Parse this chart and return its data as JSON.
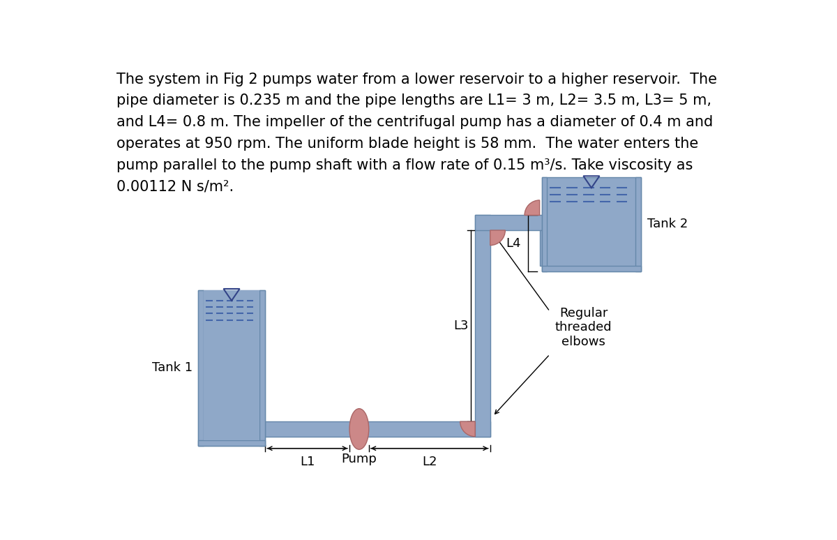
{
  "bg_color": "#ffffff",
  "pipe_color": "#8fa8c8",
  "pipe_edge_color": "#6688aa",
  "tank_fill_color": "#8fa8c8",
  "water_dash_color": "#4466aa",
  "elbow_color": "#cc8888",
  "elbow_edge_color": "#aa6666",
  "pump_color": "#cc8888",
  "pump_edge_color": "#aa6666",
  "text_color": "#000000",
  "triangle_color": "#334488",
  "font_size_text": 15.0,
  "font_size_label": 13.0,
  "text_lines": [
    "The system in Fig 2 pumps water from a lower reservoir to a higher reservoir.  The",
    "pipe diameter is 0.235 m and the pipe lengths are L1= 3 m, L2= 3.5 m, L3= 5 m,",
    "and L4= 0.8 m. The impeller of the centrifugal pump has a diameter of 0.4 m and",
    "operates at 950 rpm. The uniform blade height is 58 mm.  The water enters the",
    "pump parallel to the pump shaft with a flow rate of 0.15 m³/s. Take viscosity as",
    "0.00112 N s/m²."
  ]
}
